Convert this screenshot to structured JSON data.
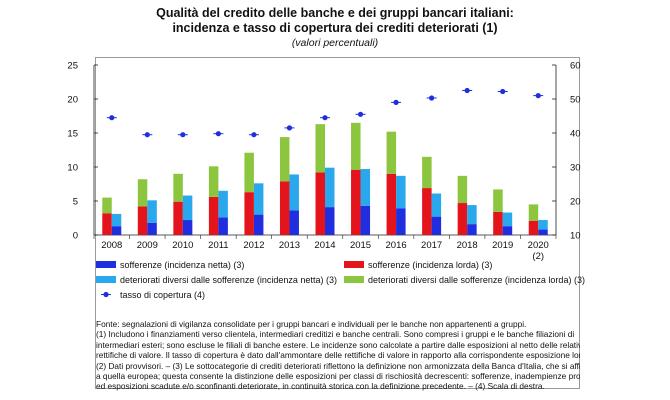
{
  "title_line1": "Qualità del credito delle banche e dei gruppi bancari italiani:",
  "title_line2": "incidenza e tasso di copertura dei crediti deteriorati (1)",
  "subtitle": "(valori percentuali)",
  "chart_data": {
    "type": "bar",
    "categories": [
      "2008",
      "2009",
      "2010",
      "2011",
      "2012",
      "2013",
      "2014",
      "2015",
      "2016",
      "2017",
      "2018",
      "2019",
      "2020"
    ],
    "category_sublabels": [
      "",
      "",
      "",
      "",
      "",
      "",
      "",
      "",
      "",
      "",
      "",
      "",
      "(2)"
    ],
    "left_axis": {
      "ylim": [
        0,
        25
      ],
      "ticks": [
        "0",
        "5",
        "10",
        "15",
        "20",
        "25"
      ]
    },
    "right_axis": {
      "ylim": [
        10,
        60
      ],
      "ticks": [
        "10",
        "20",
        "30",
        "40",
        "50",
        "60"
      ]
    },
    "colors": {
      "netta": "#1f2fe0",
      "lorda": "#e3141b",
      "altri_netta": "#2aa8ee",
      "altri_lorda": "#8cc63f",
      "tasso": "#1f2fe0"
    },
    "series": [
      {
        "name": "sofferenze (incidenza netta) (3)",
        "stack": "netta",
        "axis": "left",
        "values": [
          1.3,
          1.8,
          2.2,
          2.6,
          3.0,
          3.6,
          4.1,
          4.3,
          3.9,
          2.7,
          1.6,
          1.3,
          0.8
        ]
      },
      {
        "name": "deteriorati diversi dalle sofferenze (incidenza netta) (3)",
        "stack": "netta",
        "axis": "left",
        "values": [
          1.8,
          3.3,
          3.6,
          3.9,
          4.6,
          5.3,
          5.8,
          5.4,
          4.8,
          3.4,
          2.8,
          2.0,
          1.4
        ]
      },
      {
        "name": "sofferenze (incidenza lorda) (3)",
        "stack": "lorda",
        "axis": "left",
        "values": [
          3.2,
          4.2,
          4.9,
          5.6,
          6.3,
          7.9,
          9.2,
          9.6,
          9.0,
          6.9,
          4.7,
          3.4,
          2.1
        ]
      },
      {
        "name": "deteriorati diversi dalle sofferenze (incidenza lorda) (3)",
        "stack": "lorda",
        "axis": "left",
        "values": [
          2.3,
          4.0,
          4.1,
          4.5,
          5.8,
          6.5,
          7.1,
          6.9,
          6.2,
          4.6,
          4.0,
          3.3,
          2.4
        ]
      },
      {
        "name": "tasso di copertura (4)",
        "type": "scatter",
        "axis": "right",
        "values": [
          44.5,
          39.5,
          39.5,
          39.8,
          39.5,
          41.5,
          44.5,
          45.5,
          49.0,
          50.3,
          52.5,
          52.2,
          51.0
        ]
      }
    ],
    "legend_placement": "bottom",
    "grid": false
  },
  "notes": [
    "Fonte: segnalazioni di vigilanza consolidate per i gruppi bancari e individuali per le banche non appartenenti a gruppi.",
    "(1) Includono i finanziamenti verso clientela, intermediari creditizi e banche centrali. Sono compresi i gruppi e le banche filiazioni di",
    "intermediari esteri; sono escluse le filiali di banche estere. Le incidenze sono calcolate a partire dalle esposizioni al netto delle relative",
    "rettifiche di valore. Il tasso di copertura è dato dall'ammontare delle rettifiche di valore in rapporto alla corrispondente esposizione lorda. –",
    "(2) Dati provvisori. – (3) Le sottocategorie di crediti deteriorati riflettono la definizione non armonizzata della Banca d'Italia, che si affianca",
    "a quella europea; questa consente la distinzione delle esposizioni per classi di rischiosità decrescenti: sofferenze, inadempienze probabili",
    "ed esposizioni scadute e/o sconfinanti deteriorate, in continuità storica con la definizione precedente. – (4) Scala di destra."
  ]
}
